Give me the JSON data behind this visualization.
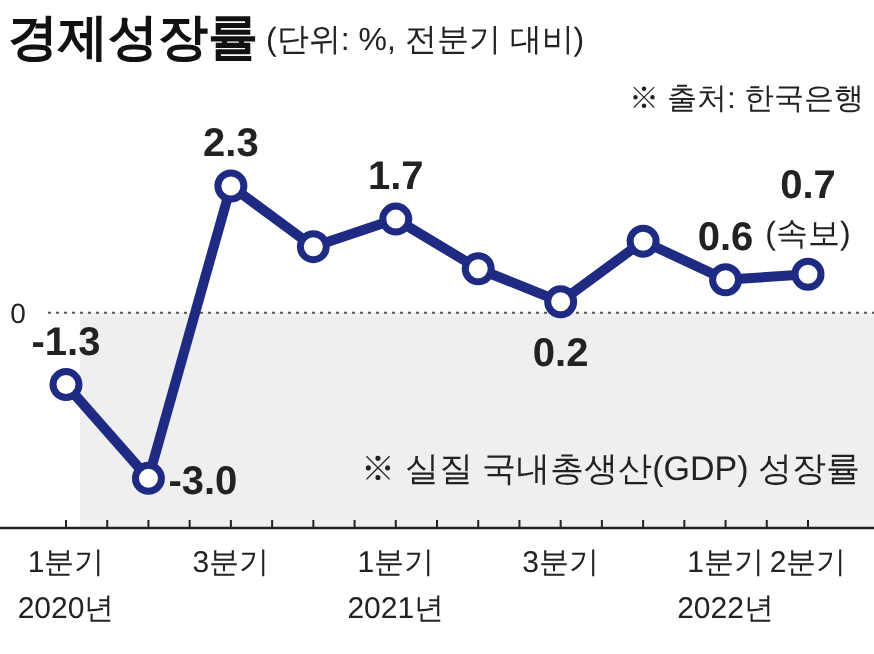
{
  "chart_data": {
    "type": "line",
    "title": "경제성장률",
    "subtitle": "(단위: %, 전분기 대비)",
    "categories": [
      "1분기 2020년",
      null,
      "3분기",
      null,
      "1분기 2021년",
      null,
      "3분기",
      null,
      "1분기 2022년",
      "2분기"
    ],
    "series": [
      {
        "color": "#1f2b83",
        "values": [
          -1.3,
          -3.0,
          2.3,
          1.2,
          1.7,
          0.8,
          0.2,
          1.3,
          0.6,
          0.7
        ],
        "value_labels": [
          "-1.3",
          "-3.0",
          "2.3",
          null,
          "1.7",
          null,
          "0.2",
          null,
          "0.6",
          "0.7"
        ]
      }
    ],
    "marker": "circle",
    "line_style": "solid",
    "ref_lines": [
      {
        "axis": "y",
        "value": 0,
        "label": "0",
        "line_style": "dotted",
        "color": "#555555"
      }
    ],
    "bands": [
      {
        "axis": "y",
        "from": -3.9,
        "to": 0,
        "color": "#efefef"
      }
    ],
    "annotations": [
      "※ 출처: 한국은행",
      "※ 실질 국내총생산(GDP) 성장률",
      "(속보)"
    ]
  }
}
